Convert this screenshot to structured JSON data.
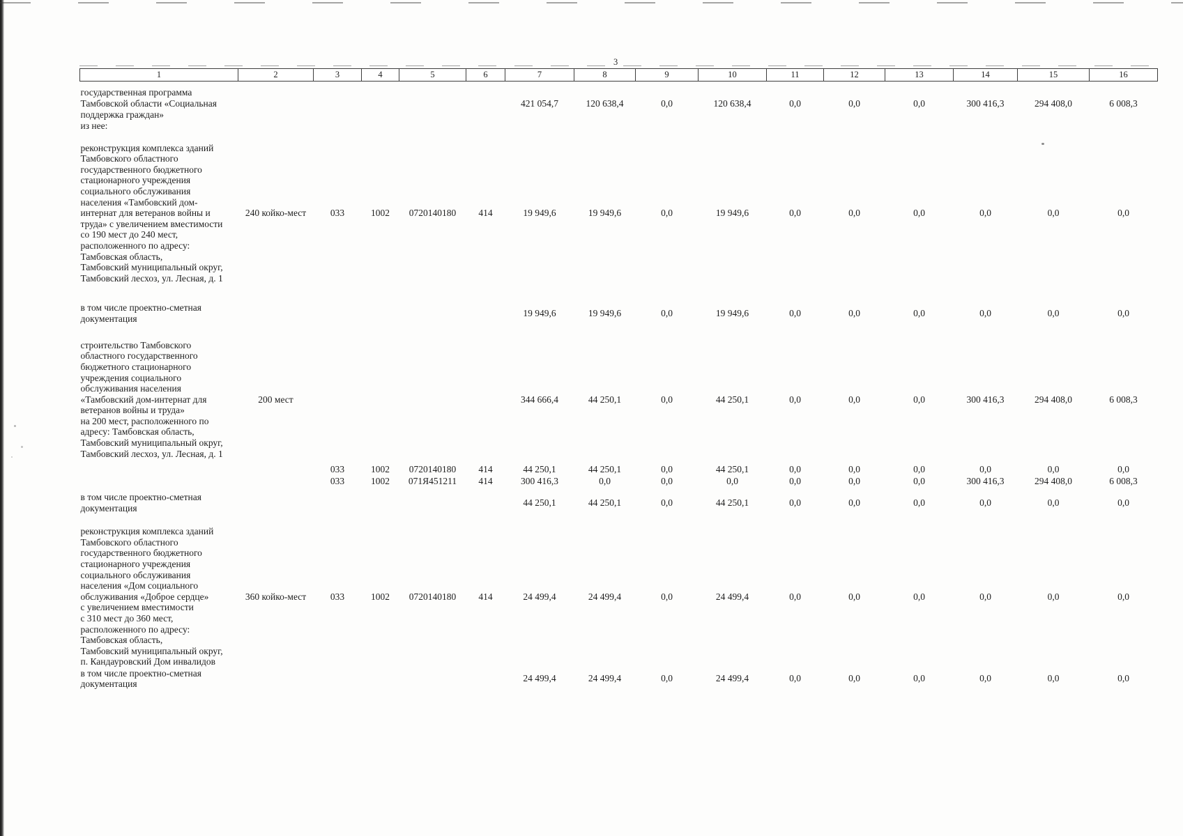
{
  "page": {
    "number": "3"
  },
  "table": {
    "header_labels": [
      "1",
      "2",
      "3",
      "4",
      "5",
      "6",
      "7",
      "8",
      "9",
      "10",
      "11",
      "12",
      "13",
      "14",
      "15",
      "16"
    ],
    "rows": [
      {
        "name": "row-program-total",
        "cells": [
          "государственная программа\nТамбовской области «Социальная\nподдержка граждан»",
          "",
          "",
          "",
          "",
          "",
          "421 054,7",
          "120 638,4",
          "0,0",
          "120 638,4",
          "0,0",
          "0,0",
          "0,0",
          "300 416,3",
          "294 408,0",
          "6 008,3"
        ]
      },
      {
        "name": "row-iz-nee",
        "cells": [
          "из нее:",
          "",
          "",
          "",
          "",
          "",
          "",
          "",
          "",
          "",
          "",
          "",
          "",
          "",
          "",
          ""
        ]
      },
      {
        "name": "row-reconstruction-veterans",
        "cells": [
          "реконструкция комплекса зданий\nТамбовского областного\nгосударственного бюджетного\nстационарного учреждения\nсоциального обслуживания\nнаселения «Тамбовский дом-\nинтернат для ветеранов войны и\nтруда» с увеличением вместимости\nсо 190 мест до 240 мест,\nрасположенного по адресу:\nТамбовская область,\nТамбовский муниципальный округ,\nТамбовский лесхоз, ул. Лесная, д. 1",
          "240 койко-мест",
          "033",
          "1002",
          "0720140180",
          "414",
          "19 949,6",
          "19 949,6",
          "0,0",
          "19 949,6",
          "0,0",
          "0,0",
          "0,0",
          "0,0",
          "0,0",
          "0,0"
        ]
      },
      {
        "name": "row-design-docs-1",
        "cells": [
          "в том числе проектно-сметная\nдокументация",
          "",
          "",
          "",
          "",
          "",
          "19 949,6",
          "19 949,6",
          "0,0",
          "19 949,6",
          "0,0",
          "0,0",
          "0,0",
          "0,0",
          "0,0",
          "0,0"
        ]
      },
      {
        "name": "row-construction-200",
        "cells": [
          "строительство Тамбовского\nобластного государственного\nбюджетного стационарного\nучреждения социального\nобслуживания населения\n«Тамбовский дом-интернат для\nветеранов войны и труда»\nна 200 мест, расположенного по\nадресу: Тамбовская область,\nТамбовский муниципальный округ,\nТамбовский лесхоз, ул. Лесная, д. 1",
          "200 мест",
          "",
          "",
          "",
          "",
          "344 666,4",
          "44 250,1",
          "0,0",
          "44 250,1",
          "0,0",
          "0,0",
          "0,0",
          "300 416,3",
          "294 408,0",
          "6 008,3"
        ]
      },
      {
        "name": "row-budget-codes-1",
        "cells": [
          "",
          "",
          "033",
          "1002",
          "0720140180",
          "414",
          "44 250,1",
          "44 250,1",
          "0,0",
          "44 250,1",
          "0,0",
          "0,0",
          "0,0",
          "0,0",
          "0,0",
          "0,0"
        ]
      },
      {
        "name": "row-budget-codes-2",
        "cells": [
          "",
          "",
          "033",
          "1002",
          "071Я451211",
          "414",
          "300 416,3",
          "0,0",
          "0,0",
          "0,0",
          "0,0",
          "0,0",
          "0,0",
          "300 416,3",
          "294 408,0",
          "6 008,3"
        ]
      },
      {
        "name": "row-design-docs-2",
        "cells": [
          "в том числе проектно-сметная\nдокументация",
          "",
          "",
          "",
          "",
          "",
          "44 250,1",
          "44 250,1",
          "0,0",
          "44 250,1",
          "0,0",
          "0,0",
          "0,0",
          "0,0",
          "0,0",
          "0,0"
        ]
      },
      {
        "name": "row-reconstruction-dobroe-serdce",
        "cells": [
          "реконструкция комплекса зданий\nТамбовского областного\nгосударственного бюджетного\nстационарного учреждения\nсоциального обслуживания\nнаселения «Дом социального\nобслуживания «Доброе сердце»\nс увеличением вместимости\nс 310 мест до 360 мест,\nрасположенного по адресу:\nТамбовская область,\nТамбовский муниципальный округ,\nп. Кандауровский Дом инвалидов",
          "360 койко-мест",
          "033",
          "1002",
          "0720140180",
          "414",
          "24 499,4",
          "24 499,4",
          "0,0",
          "24 499,4",
          "0,0",
          "0,0",
          "0,0",
          "0,0",
          "0,0",
          "0,0"
        ]
      },
      {
        "name": "row-design-docs-3",
        "cells": [
          "в том числе проектно-сметная\nдокументация",
          "",
          "",
          "",
          "",
          "",
          "24 499,4",
          "24 499,4",
          "0,0",
          "24 499,4",
          "0,0",
          "0,0",
          "0,0",
          "0,0",
          "0,0",
          "0,0"
        ]
      }
    ]
  }
}
